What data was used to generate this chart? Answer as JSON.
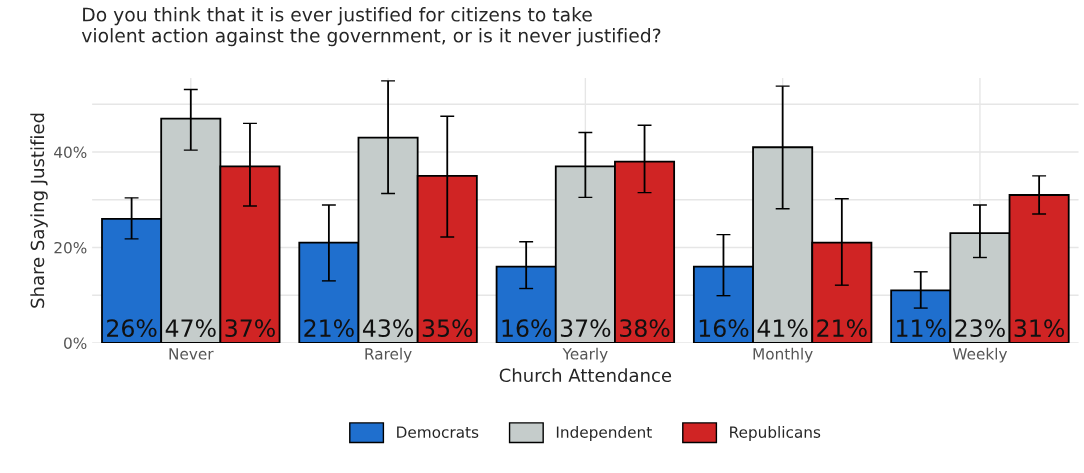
{
  "chart_data": {
    "type": "bar",
    "title": "Do you think that it is ever justified for citizens to take\nviolent action against the government, or is it never justified?",
    "xlabel": "Church Attendance",
    "ylabel": "Share Saying Justified",
    "categories": [
      "Never",
      "Rarely",
      "Yearly",
      "Monthly",
      "Weekly"
    ],
    "series": [
      {
        "name": "Democrats",
        "color": "#1f6fce",
        "values": [
          26,
          21,
          16,
          16,
          11
        ],
        "errors": [
          [
            21.8,
            30.4
          ],
          [
            13.0,
            28.9
          ],
          [
            11.4,
            21.2
          ],
          [
            9.9,
            22.7
          ],
          [
            7.3,
            14.9
          ]
        ],
        "value_labels": [
          "26%",
          "21%",
          "16%",
          "16%",
          "11%"
        ]
      },
      {
        "name": "Independent",
        "color": "#c5cccb",
        "values": [
          47,
          43,
          37,
          41,
          23
        ],
        "errors": [
          [
            40.4,
            53.1
          ],
          [
            31.3,
            54.9
          ],
          [
            30.5,
            44.1
          ],
          [
            28.1,
            53.8
          ],
          [
            17.9,
            28.9
          ]
        ],
        "value_labels": [
          "47%",
          "43%",
          "37%",
          "41%",
          "23%"
        ]
      },
      {
        "name": "Republicans",
        "color": "#d02424",
        "values": [
          37,
          35,
          38,
          21,
          31
        ],
        "errors": [
          [
            28.7,
            46.0
          ],
          [
            22.2,
            47.5
          ],
          [
            31.5,
            45.6
          ],
          [
            12.1,
            30.2
          ],
          [
            27.0,
            35.0
          ]
        ],
        "value_labels": [
          "37%",
          "35%",
          "38%",
          "21%",
          "31%"
        ]
      }
    ],
    "ylim": [
      0,
      55.5
    ],
    "yticks": [
      {
        "value": 0,
        "label": "0%"
      },
      {
        "value": 10,
        "label": null
      },
      {
        "value": 20,
        "label": "20%"
      },
      {
        "value": 30,
        "label": null
      },
      {
        "value": 40,
        "label": "40%"
      },
      {
        "value": 50,
        "label": null
      }
    ],
    "grid": true,
    "legend": "bottom"
  }
}
